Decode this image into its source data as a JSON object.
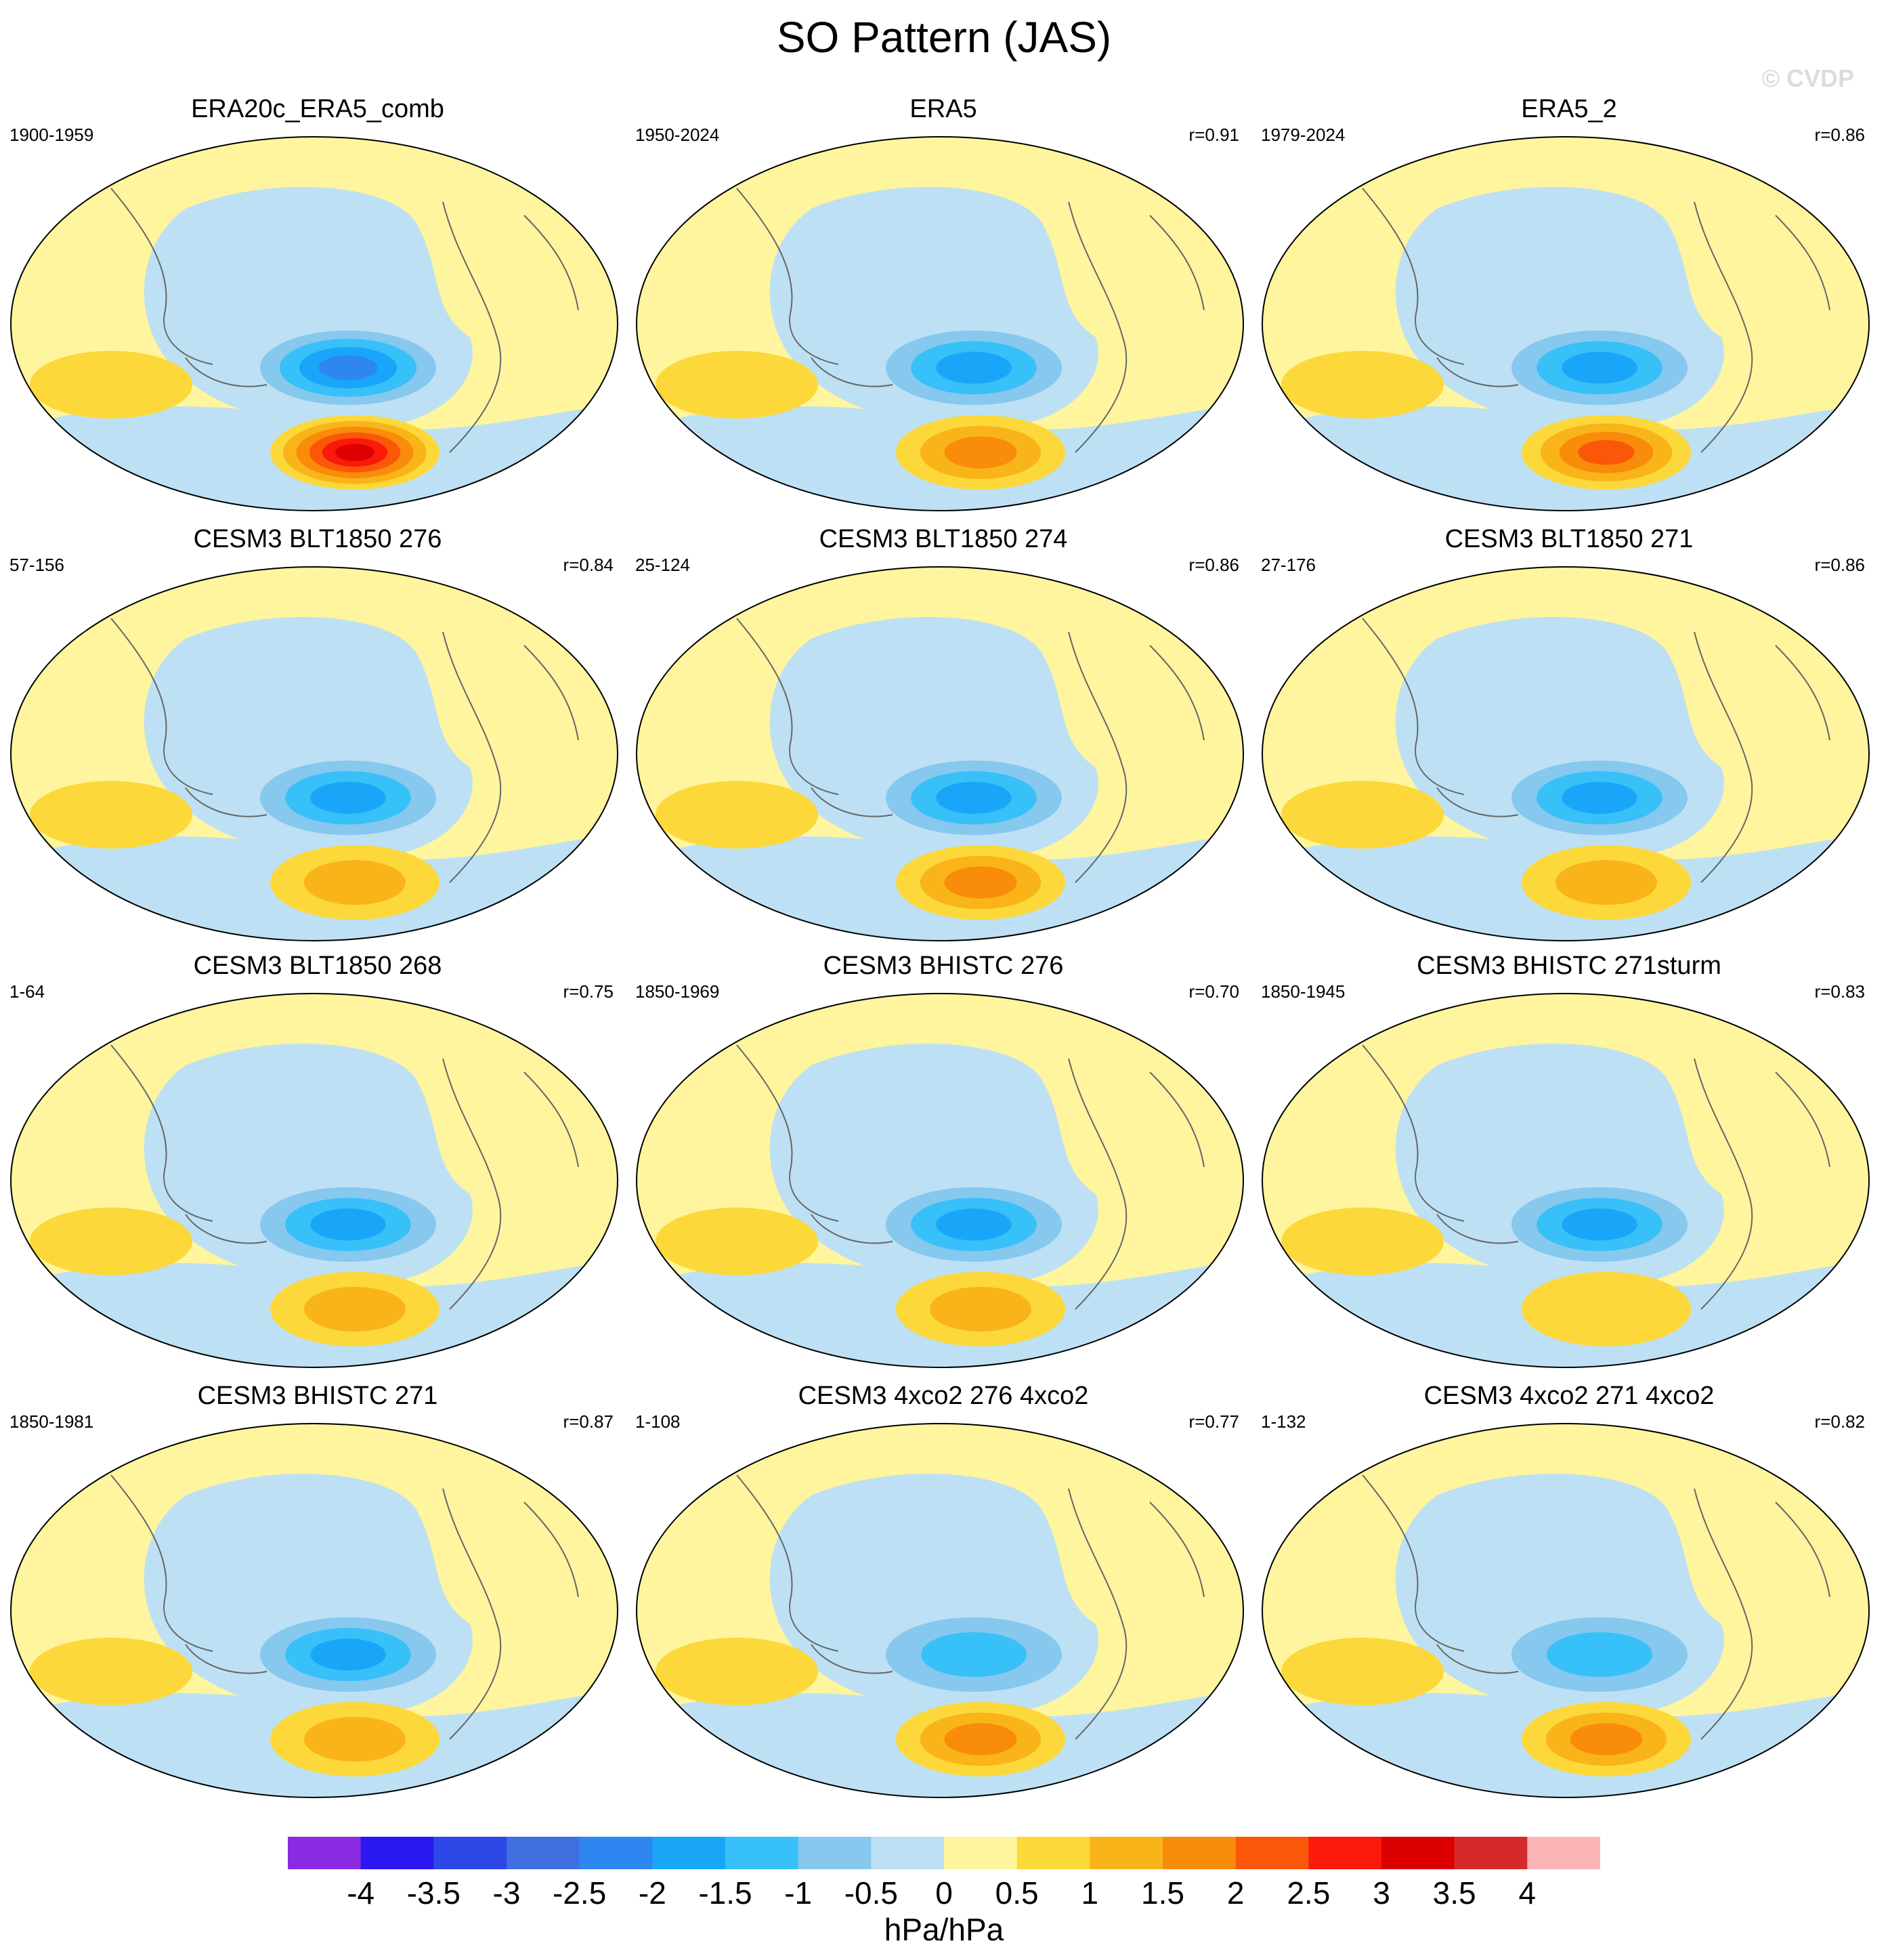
{
  "title": "SO Pattern (JAS)",
  "watermark": "© CVDP",
  "panels": [
    {
      "title": "ERA20c_ERA5_comb",
      "period": "1900-1959",
      "r": "",
      "neg": 2.5,
      "pos": 3.5
    },
    {
      "title": "ERA5",
      "period": "1950-2024",
      "r": "r=0.91",
      "neg": 2.0,
      "pos": 2.0
    },
    {
      "title": "ERA5_2",
      "period": "1979-2024",
      "r": "r=0.86",
      "neg": 2.0,
      "pos": 2.5
    },
    {
      "title": "CESM3 BLT1850 276",
      "period": "57-156",
      "r": "r=0.84",
      "neg": 2.0,
      "pos": 1.5
    },
    {
      "title": "CESM3 BLT1850 274",
      "period": "25-124",
      "r": "r=0.86",
      "neg": 2.0,
      "pos": 2.0
    },
    {
      "title": "CESM3 BLT1850 271",
      "period": "27-176",
      "r": "r=0.86",
      "neg": 2.0,
      "pos": 1.5
    },
    {
      "title": "CESM3 BLT1850 268",
      "period": "1-64",
      "r": "r=0.75",
      "neg": 2.0,
      "pos": 1.5
    },
    {
      "title": "CESM3 BHISTC 276",
      "period": "1850-1969",
      "r": "r=0.70",
      "neg": 2.0,
      "pos": 1.5
    },
    {
      "title": "CESM3 BHISTC 271sturm",
      "period": "1850-1945",
      "r": "r=0.83",
      "neg": 2.0,
      "pos": 1.0
    },
    {
      "title": "CESM3 BHISTC 271",
      "period": "1850-1981",
      "r": "r=0.87",
      "neg": 2.0,
      "pos": 1.5
    },
    {
      "title": "CESM3 4xco2 276 4xco2",
      "period": "1-108",
      "r": "r=0.77",
      "neg": 1.5,
      "pos": 2.0
    },
    {
      "title": "CESM3 4xco2 271 4xco2",
      "period": "1-132",
      "r": "r=0.82",
      "neg": 1.5,
      "pos": 2.0
    }
  ],
  "colorbar": {
    "labels": [
      "-4",
      "-3.5",
      "-3",
      "-2.5",
      "-2",
      "-1.5",
      "-1",
      "-0.5",
      "0",
      "0.5",
      "1",
      "1.5",
      "2",
      "2.5",
      "3",
      "3.5",
      "4"
    ],
    "colors": [
      "#8a2be2",
      "#2a18f0",
      "#2d46e6",
      "#3f6fe0",
      "#2e86f0",
      "#1aa6f8",
      "#38c0f8",
      "#86c8ee",
      "#bde0f4",
      "#fff59e",
      "#fcd83a",
      "#f9b41a",
      "#f98c0a",
      "#fa5808",
      "#fb1a0a",
      "#dd0000",
      "#d42a2a",
      "#fdb4b6"
    ],
    "units": "hPa/hPa"
  }
}
